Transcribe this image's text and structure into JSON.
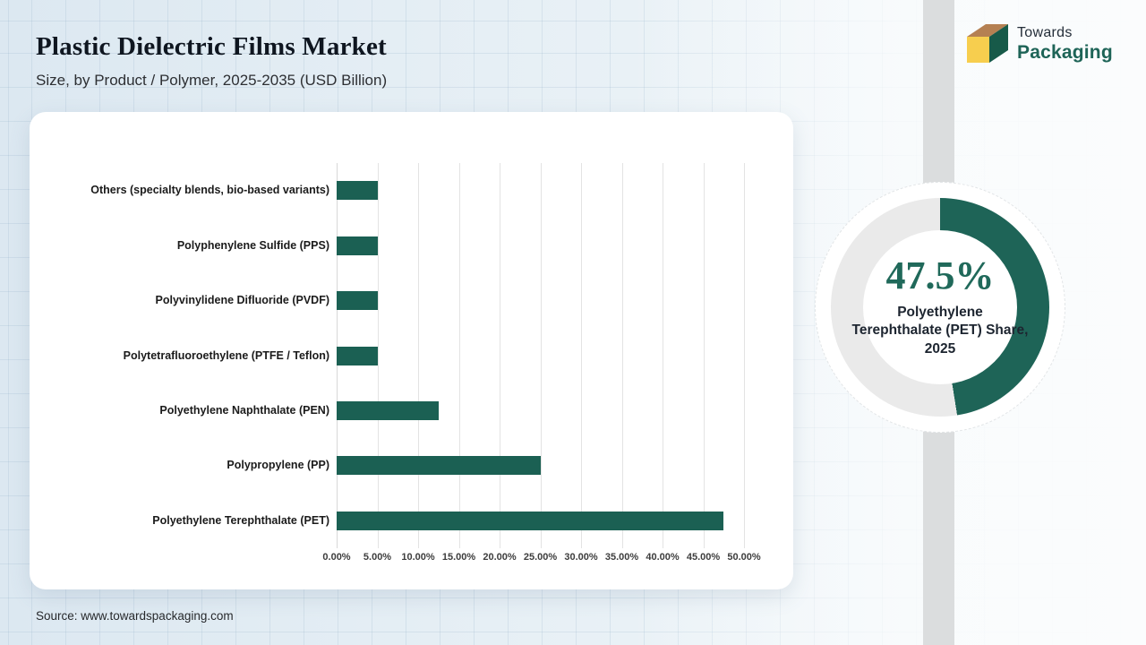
{
  "header": {
    "title": "Plastic Dielectric Films Market",
    "subtitle": "Size, by Product / Polymer, 2025-2035 (USD Billion)"
  },
  "logo": {
    "line1": "Towards",
    "line2": "Packaging"
  },
  "source_text": "Source: www.towardspackaging.com",
  "colors": {
    "accent_green": "#1e6457",
    "bar_green": "#1b6053",
    "donut_green": "#1e6457",
    "donut_track": "#eaeaea",
    "logo_yellow": "#f7ce4e",
    "logo_tan": "#b58052",
    "logo_green": "#175a49"
  },
  "chart_data": [
    {
      "type": "bar",
      "orientation": "horizontal",
      "title": "Plastic Dielectric Films Market Size, by Product / Polymer, 2025-2035 (USD Billion)",
      "categories": [
        "Others (specialty blends, bio-based variants)",
        "Polyphenylene Sulfide (PPS)",
        "Polyvinylidene Difluoride (PVDF)",
        "Polytetrafluoroethylene (PTFE / Teflon)",
        "Polyethylene Naphthalate (PEN)",
        "Polypropylene (PP)",
        "Polyethylene Terephthalate (PET)"
      ],
      "values": [
        5.0,
        5.0,
        5.0,
        5.0,
        12.5,
        25.0,
        47.5
      ],
      "value_unit": "%",
      "xlim": [
        0,
        50
      ],
      "x_ticks": [
        "0.00%",
        "5.00%",
        "10.00%",
        "15.00%",
        "20.00%",
        "25.00%",
        "30.00%",
        "35.00%",
        "40.00%",
        "45.00%",
        "50.00%"
      ],
      "grid": true,
      "legend": false,
      "bar_color": "#1b6053"
    },
    {
      "type": "donut",
      "value_pct": 47.5,
      "center_value": "47.5%",
      "center_label": "Polyethylene Terephthalate (PET) Share, 2025",
      "segment_color": "#1e6457",
      "track_color": "#eaeaea",
      "start_angle_deg": 0,
      "direction": "clockwise"
    }
  ]
}
